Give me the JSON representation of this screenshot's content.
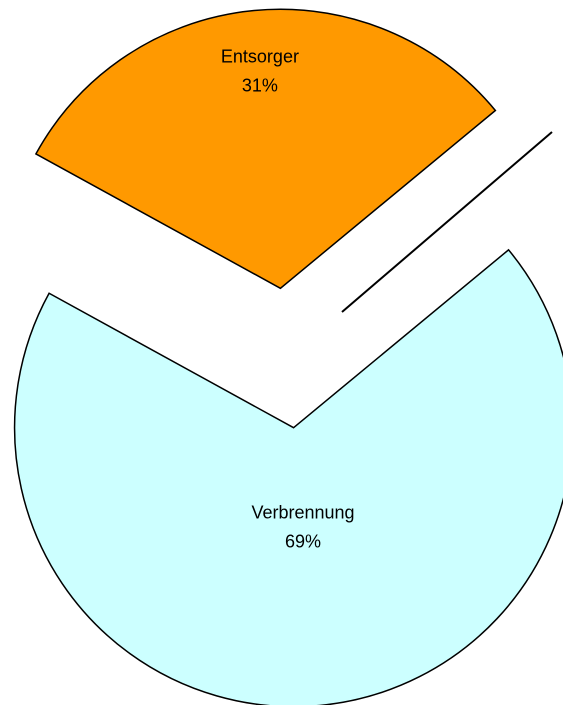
{
  "chart_data": {
    "type": "pie",
    "categories": [
      "Entsorger",
      "Verbrennung"
    ],
    "values": [
      31,
      69
    ],
    "value_labels": [
      "31%",
      "69%"
    ],
    "colors": [
      "#ff9900",
      "#ccffff"
    ]
  }
}
